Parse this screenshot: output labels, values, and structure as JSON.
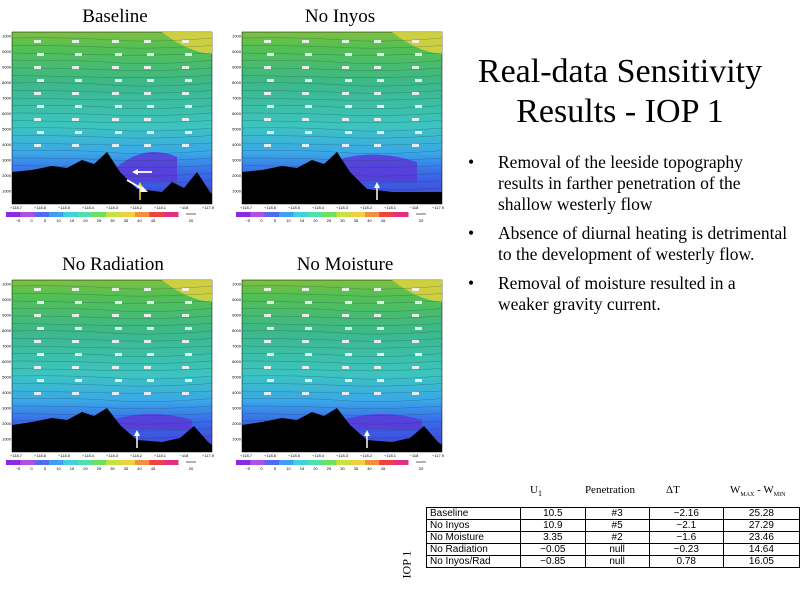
{
  "panels": [
    {
      "title": "Baseline"
    },
    {
      "title": "No Inyos"
    },
    {
      "title": "No Radiation"
    },
    {
      "title": "No Moisture"
    }
  ],
  "slide": {
    "title_line1": "Real-data Sensitivity",
    "title_line2": "Results - IOP 1",
    "bullets": [
      "Removal of the leeside topography results in farther penetration of the shallow westerly flow",
      "Absence of diurnal heating is detrimental to the development of westerly flow.",
      "Removal of moisture resulted in a weaker gravity current."
    ]
  },
  "table": {
    "side_label": "IOP 1",
    "headers": [
      "U",
      "Penetration",
      "ΔT",
      "W"
    ],
    "header_subs": [
      "1",
      "",
      "",
      "MAX"
    ],
    "header_tail": [
      "",
      "",
      "",
      " - W"
    ],
    "header_tail_sub": [
      "",
      "",
      "",
      "MIN"
    ],
    "rows": [
      {
        "name": "Baseline",
        "u1": "10.5",
        "pen": "#3",
        "dt": "−2.16",
        "w": "25.28"
      },
      {
        "name": "No Inyos",
        "u1": "10.9",
        "pen": "#5",
        "dt": "−2.1",
        "w": "27.29"
      },
      {
        "name": "No Moisture",
        "u1": "3.35",
        "pen": "#2",
        "dt": "−1.6",
        "w": "23.46"
      },
      {
        "name": "No Radiation",
        "u1": "−0.05",
        "pen": "null",
        "dt": "−0.23",
        "w": "14.64"
      },
      {
        "name": "No Inyos/Rad",
        "u1": "−0.85",
        "pen": "null",
        "dt": "0.78",
        "w": "16.05"
      }
    ]
  },
  "axis": {
    "y_ticks": [
      "11000",
      "10000",
      "9000",
      "8000",
      "7000",
      "6000",
      "5000",
      "4000",
      "3000",
      "2000",
      "1000"
    ],
    "x_ticks": [
      "−118.7",
      "−118.6",
      "−118.5",
      "−118.4",
      "−118.3",
      "−118.2",
      "−118.1",
      "−118",
      "−117.9"
    ],
    "colorbar_ticks": [
      "−5",
      "0",
      "5",
      "10",
      "15",
      "20",
      "25",
      "30",
      "35",
      "40",
      "45"
    ],
    "colorbar_unit": "20"
  },
  "colors": {
    "colorbar": [
      "#8a2be2",
      "#b04fe0",
      "#4f6cf0",
      "#3fa0f0",
      "#40d0e0",
      "#50e0b0",
      "#70e060",
      "#c8e040",
      "#f0d040",
      "#f09040",
      "#f04040",
      "#e03080"
    ]
  }
}
